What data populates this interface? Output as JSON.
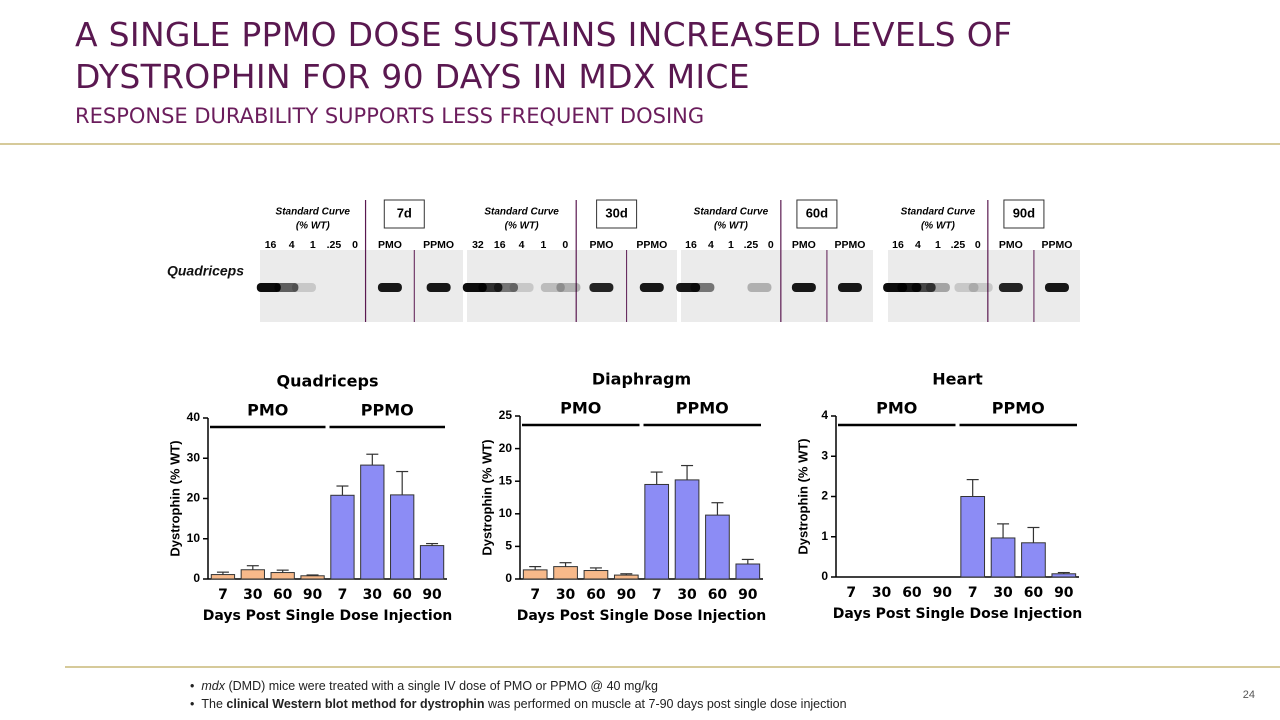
{
  "title": "A SINGLE PPMO DOSE SUSTAINS INCREASED LEVELS OF DYSTROPHIN FOR 90 DAYS IN MDX MICE",
  "subtitle": "RESPONSE DURABILITY SUPPORTS LESS FREQUENT DOSING",
  "blot": {
    "row_label": "Quadriceps",
    "panels": [
      {
        "header": [
          "Standard Curve",
          "(% WT)"
        ],
        "day": "7d",
        "lanes": [
          "16",
          "4",
          "1",
          ".25",
          "0",
          "PMO",
          "PPMO"
        ]
      },
      {
        "header": [
          "Standard Curve",
          "(% WT)"
        ],
        "day": "30d",
        "lanes": [
          "32",
          "16",
          "4",
          "1",
          "0",
          "PMO",
          "PPMO"
        ]
      },
      {
        "header": [
          "Standard Curve",
          "(% WT)"
        ],
        "day": "60d",
        "lanes": [
          "16",
          "4",
          "1",
          ".25",
          "0",
          "PMO",
          "PPMO"
        ]
      },
      {
        "header": [
          "Standard Curve",
          "(% WT)"
        ],
        "day": "90d",
        "lanes": [
          "16",
          "4",
          "1",
          ".25",
          "0",
          "PMO",
          "PPMO"
        ]
      }
    ]
  },
  "chart_data": [
    {
      "type": "bar",
      "title": "Quadriceps",
      "xlabel": "Days Post Single Dose Injection",
      "ylabel": "Dystrophin (% WT)",
      "categories": [
        "7",
        "30",
        "60",
        "90",
        "7",
        "30",
        "60",
        "90"
      ],
      "ylim": [
        0,
        40
      ],
      "yticks": [
        0,
        10,
        20,
        30,
        40
      ],
      "series": [
        {
          "name": "PMO",
          "color": "#f7b98a",
          "values": [
            1.1,
            2.3,
            1.6,
            0.8,
            null,
            null,
            null,
            null
          ],
          "errors": [
            0.6,
            1.0,
            0.6,
            0.2,
            null,
            null,
            null,
            null
          ]
        },
        {
          "name": "PPMO",
          "color": "#8c8cf5",
          "values": [
            null,
            null,
            null,
            null,
            20.8,
            28.3,
            20.9,
            8.3
          ],
          "errors": [
            null,
            null,
            null,
            null,
            2.3,
            2.7,
            5.8,
            0.5
          ]
        }
      ]
    },
    {
      "type": "bar",
      "title": "Diaphragm",
      "xlabel": "Days Post Single Dose Injection",
      "ylabel": "Dystrophin (% WT)",
      "categories": [
        "7",
        "30",
        "60",
        "90",
        "7",
        "30",
        "60",
        "90"
      ],
      "ylim": [
        0,
        25
      ],
      "yticks": [
        0,
        5,
        10,
        15,
        20,
        25
      ],
      "series": [
        {
          "name": "PMO",
          "color": "#f7b98a",
          "values": [
            1.4,
            1.9,
            1.3,
            0.6,
            null,
            null,
            null,
            null
          ],
          "errors": [
            0.5,
            0.6,
            0.4,
            0.2,
            null,
            null,
            null,
            null
          ]
        },
        {
          "name": "PPMO",
          "color": "#8c8cf5",
          "values": [
            null,
            null,
            null,
            null,
            14.5,
            15.2,
            9.8,
            2.3
          ],
          "errors": [
            null,
            null,
            null,
            null,
            1.9,
            2.2,
            1.9,
            0.7
          ]
        }
      ]
    },
    {
      "type": "bar",
      "title": "Heart",
      "xlabel": "Days Post Single Dose Injection",
      "ylabel": "Dystrophin (% WT)",
      "categories": [
        "7",
        "30",
        "60",
        "90",
        "7",
        "30",
        "60",
        "90"
      ],
      "ylim": [
        0,
        4
      ],
      "yticks": [
        0,
        1,
        2,
        3,
        4
      ],
      "series": [
        {
          "name": "PMO",
          "color": "#f7b98a",
          "values": [
            0,
            0,
            0,
            0,
            null,
            null,
            null,
            null
          ],
          "errors": [
            0,
            0,
            0,
            0,
            null,
            null,
            null,
            null
          ]
        },
        {
          "name": "PPMO",
          "color": "#8c8cf5",
          "values": [
            null,
            null,
            null,
            null,
            2.0,
            0.97,
            0.85,
            0.08
          ],
          "errors": [
            null,
            null,
            null,
            null,
            0.42,
            0.35,
            0.38,
            0.03
          ]
        }
      ]
    }
  ],
  "bullets": [
    [
      "mdx",
      " (DMD) mice were treated with a single IV dose of PMO or PPMO @ 40 mg/kg"
    ],
    [
      "The ",
      "clinical Western blot method for dystrophin",
      " was performed on muscle at 7-90 days post single dose injection"
    ]
  ],
  "page_number": "24"
}
